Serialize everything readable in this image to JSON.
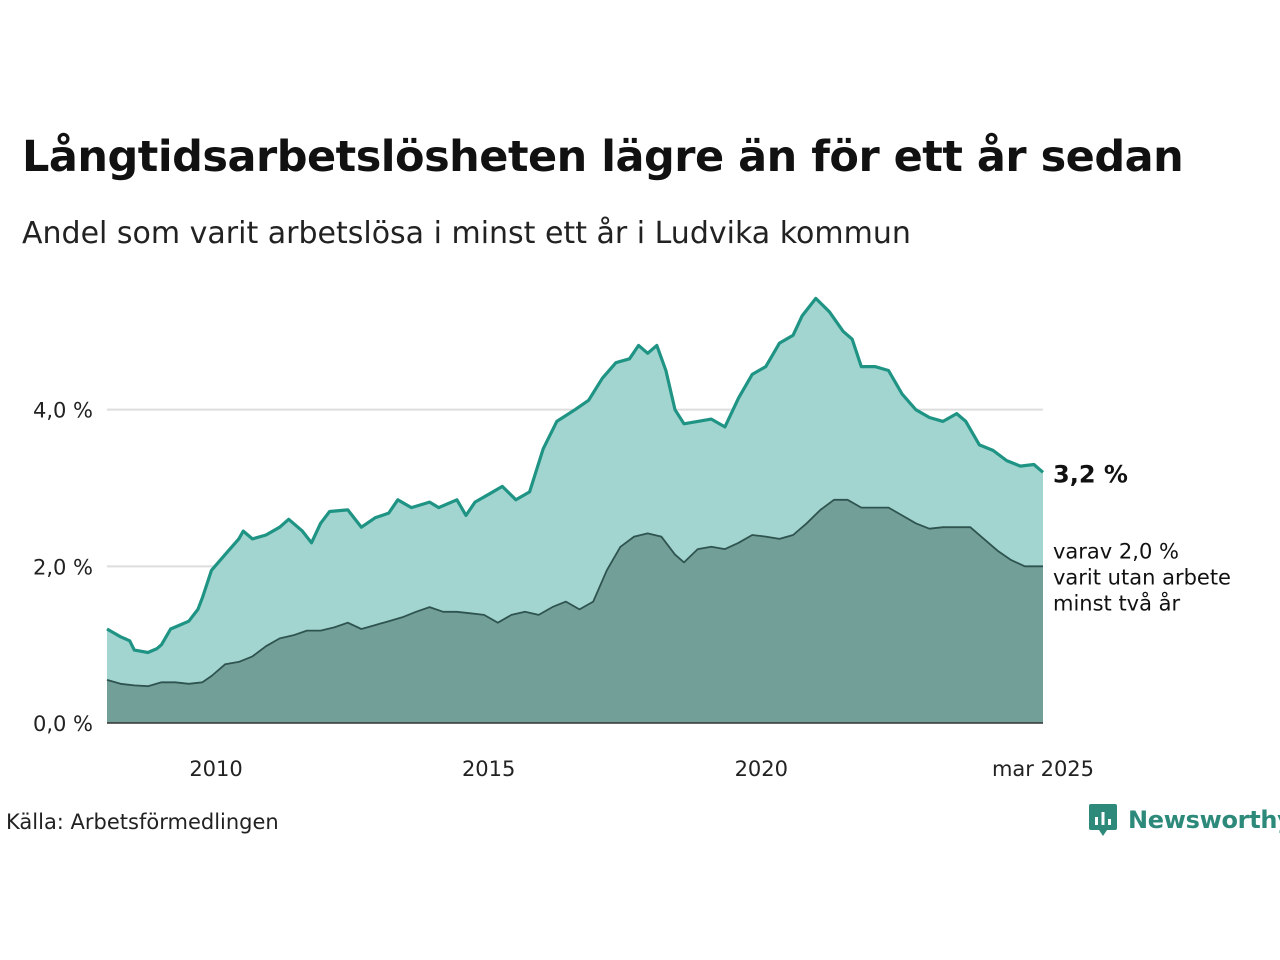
{
  "title": "Långtidsarbetslösheten lägre än för ett år sedan",
  "subtitle": "Andel som varit arbetslösa i minst ett år i Ludvika kommun",
  "source": "Källa: Arbetsförmedlingen",
  "brand": {
    "name": "Newsworthy",
    "icon": "newsworthy-logo-icon",
    "color": "#2d8a7b"
  },
  "colors": {
    "total_line": "#1f9484",
    "total_fill": "#a3d5d0",
    "long_line": "#2f5450",
    "long_fill": "#729f98",
    "grid": "#dddddd"
  },
  "chart_data": {
    "type": "area",
    "title": "Långtidsarbetslösheten lägre än för ett år sedan",
    "subtitle": "Andel som varit arbetslösa i minst ett år i Ludvika kommun",
    "x_range": [
      "2008-01",
      "2025-03"
    ],
    "ylim": [
      0,
      6
    ],
    "y_ticks": [
      0,
      2,
      4
    ],
    "y_tick_labels": [
      "0,0 %",
      "2,0 %",
      "4,0 %"
    ],
    "x_ticks": [
      "2010-01",
      "2015-01",
      "2020-01",
      "2025-03"
    ],
    "x_tick_labels": [
      "2010",
      "2015",
      "2020",
      "mar 2025"
    ],
    "grid": true,
    "series": [
      {
        "key": "total",
        "points": [
          [
            "2008-01",
            1.2
          ],
          [
            "2008-04",
            1.1
          ],
          [
            "2008-06",
            1.05
          ],
          [
            "2008-07",
            0.93
          ],
          [
            "2008-10",
            0.9
          ],
          [
            "2008-12",
            0.95
          ],
          [
            "2009-01",
            1.0
          ],
          [
            "2009-03",
            1.2
          ],
          [
            "2009-05",
            1.25
          ],
          [
            "2009-07",
            1.3
          ],
          [
            "2009-09",
            1.45
          ],
          [
            "2009-10",
            1.6
          ],
          [
            "2009-12",
            1.95
          ],
          [
            "2010-03",
            2.15
          ],
          [
            "2010-06",
            2.35
          ],
          [
            "2010-07",
            2.45
          ],
          [
            "2010-09",
            2.35
          ],
          [
            "2010-12",
            2.4
          ],
          [
            "2011-03",
            2.5
          ],
          [
            "2011-05",
            2.6
          ],
          [
            "2011-08",
            2.45
          ],
          [
            "2011-10",
            2.3
          ],
          [
            "2011-12",
            2.55
          ],
          [
            "2012-02",
            2.7
          ],
          [
            "2012-06",
            2.72
          ],
          [
            "2012-09",
            2.5
          ],
          [
            "2012-12",
            2.62
          ],
          [
            "2013-03",
            2.68
          ],
          [
            "2013-05",
            2.85
          ],
          [
            "2013-08",
            2.75
          ],
          [
            "2013-12",
            2.82
          ],
          [
            "2014-02",
            2.75
          ],
          [
            "2014-06",
            2.85
          ],
          [
            "2014-08",
            2.65
          ],
          [
            "2014-10",
            2.82
          ],
          [
            "2015-01",
            2.92
          ],
          [
            "2015-04",
            3.02
          ],
          [
            "2015-07",
            2.85
          ],
          [
            "2015-10",
            2.95
          ],
          [
            "2016-01",
            3.5
          ],
          [
            "2016-04",
            3.85
          ],
          [
            "2016-08",
            4.0
          ],
          [
            "2016-11",
            4.12
          ],
          [
            "2017-02",
            4.4
          ],
          [
            "2017-05",
            4.6
          ],
          [
            "2017-08",
            4.65
          ],
          [
            "2017-10",
            4.82
          ],
          [
            "2017-12",
            4.72
          ],
          [
            "2018-02",
            4.82
          ],
          [
            "2018-04",
            4.5
          ],
          [
            "2018-06",
            4.0
          ],
          [
            "2018-08",
            3.82
          ],
          [
            "2018-11",
            3.85
          ],
          [
            "2019-02",
            3.88
          ],
          [
            "2019-05",
            3.78
          ],
          [
            "2019-08",
            4.15
          ],
          [
            "2019-11",
            4.45
          ],
          [
            "2020-02",
            4.55
          ],
          [
            "2020-05",
            4.85
          ],
          [
            "2020-08",
            4.95
          ],
          [
            "2020-10",
            5.2
          ],
          [
            "2021-01",
            5.42
          ],
          [
            "2021-04",
            5.25
          ],
          [
            "2021-07",
            5.0
          ],
          [
            "2021-09",
            4.9
          ],
          [
            "2021-11",
            4.55
          ],
          [
            "2022-02",
            4.55
          ],
          [
            "2022-05",
            4.5
          ],
          [
            "2022-08",
            4.2
          ],
          [
            "2022-11",
            4.0
          ],
          [
            "2023-02",
            3.9
          ],
          [
            "2023-05",
            3.85
          ],
          [
            "2023-08",
            3.95
          ],
          [
            "2023-10",
            3.85
          ],
          [
            "2024-01",
            3.55
          ],
          [
            "2024-04",
            3.48
          ],
          [
            "2024-07",
            3.35
          ],
          [
            "2024-10",
            3.28
          ],
          [
            "2025-01",
            3.3
          ],
          [
            "2025-03",
            3.2
          ]
        ],
        "end_label": "3,2 %"
      },
      {
        "key": "long",
        "points": [
          [
            "2008-01",
            0.55
          ],
          [
            "2008-04",
            0.5
          ],
          [
            "2008-07",
            0.48
          ],
          [
            "2008-10",
            0.47
          ],
          [
            "2009-01",
            0.52
          ],
          [
            "2009-04",
            0.52
          ],
          [
            "2009-07",
            0.5
          ],
          [
            "2009-10",
            0.52
          ],
          [
            "2009-12",
            0.6
          ],
          [
            "2010-03",
            0.75
          ],
          [
            "2010-06",
            0.78
          ],
          [
            "2010-09",
            0.85
          ],
          [
            "2010-12",
            0.98
          ],
          [
            "2011-03",
            1.08
          ],
          [
            "2011-06",
            1.12
          ],
          [
            "2011-09",
            1.18
          ],
          [
            "2011-12",
            1.18
          ],
          [
            "2012-03",
            1.22
          ],
          [
            "2012-06",
            1.28
          ],
          [
            "2012-09",
            1.2
          ],
          [
            "2012-12",
            1.25
          ],
          [
            "2013-03",
            1.3
          ],
          [
            "2013-06",
            1.35
          ],
          [
            "2013-09",
            1.42
          ],
          [
            "2013-12",
            1.48
          ],
          [
            "2014-03",
            1.42
          ],
          [
            "2014-06",
            1.42
          ],
          [
            "2014-09",
            1.4
          ],
          [
            "2014-12",
            1.38
          ],
          [
            "2015-03",
            1.28
          ],
          [
            "2015-06",
            1.38
          ],
          [
            "2015-09",
            1.42
          ],
          [
            "2015-12",
            1.38
          ],
          [
            "2016-03",
            1.48
          ],
          [
            "2016-06",
            1.55
          ],
          [
            "2016-09",
            1.45
          ],
          [
            "2016-12",
            1.55
          ],
          [
            "2017-03",
            1.95
          ],
          [
            "2017-06",
            2.25
          ],
          [
            "2017-09",
            2.38
          ],
          [
            "2017-12",
            2.42
          ],
          [
            "2018-03",
            2.38
          ],
          [
            "2018-06",
            2.15
          ],
          [
            "2018-08",
            2.05
          ],
          [
            "2018-11",
            2.22
          ],
          [
            "2019-02",
            2.25
          ],
          [
            "2019-05",
            2.22
          ],
          [
            "2019-08",
            2.3
          ],
          [
            "2019-11",
            2.4
          ],
          [
            "2020-02",
            2.38
          ],
          [
            "2020-05",
            2.35
          ],
          [
            "2020-08",
            2.4
          ],
          [
            "2020-11",
            2.55
          ],
          [
            "2021-02",
            2.72
          ],
          [
            "2021-05",
            2.85
          ],
          [
            "2021-08",
            2.85
          ],
          [
            "2021-11",
            2.75
          ],
          [
            "2022-02",
            2.75
          ],
          [
            "2022-05",
            2.75
          ],
          [
            "2022-08",
            2.65
          ],
          [
            "2022-11",
            2.55
          ],
          [
            "2023-02",
            2.48
          ],
          [
            "2023-05",
            2.5
          ],
          [
            "2023-08",
            2.5
          ],
          [
            "2023-11",
            2.5
          ],
          [
            "2024-02",
            2.35
          ],
          [
            "2024-05",
            2.2
          ],
          [
            "2024-08",
            2.08
          ],
          [
            "2024-11",
            2.0
          ],
          [
            "2025-01",
            2.0
          ],
          [
            "2025-03",
            2.0
          ]
        ],
        "end_label": [
          "varav 2,0 %",
          "varit utan arbete",
          "minst två år"
        ]
      }
    ]
  }
}
